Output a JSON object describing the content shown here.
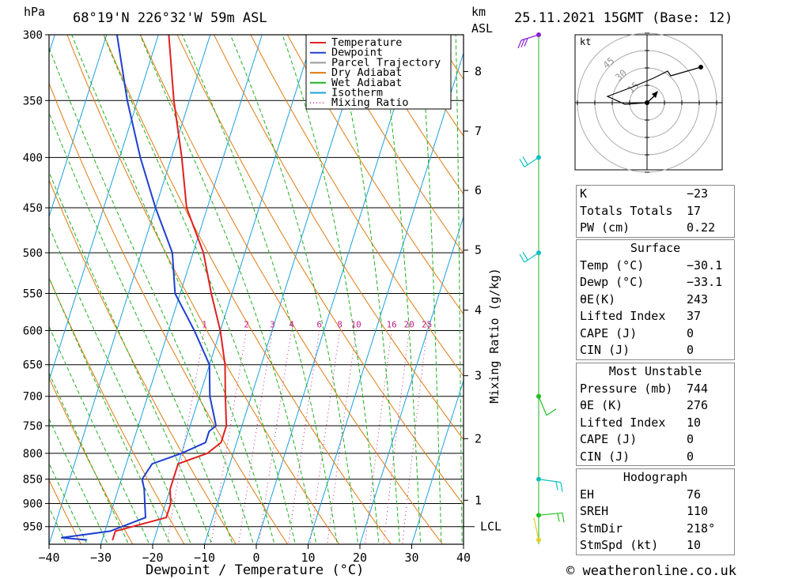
{
  "header": {
    "hpa_unit": "hPa",
    "location": "68°19'N  226°32'W  59m  ASL",
    "km_unit": "km",
    "asl_label": "ASL",
    "datetime": "25.11.2021  15GMT  (Base: 12)"
  },
  "footer": {
    "xlabel": "Dewpoint / Temperature (°C)",
    "credit": "© weatheronline.co.uk"
  },
  "chart_data": {
    "type": "line",
    "title": "68°19'N  226°32'W  59m  ASL",
    "xlabel": "Dewpoint / Temperature (°C)",
    "ylabel": "hPa",
    "y_scale": "log",
    "xlim": [
      -40,
      40
    ],
    "ylim": [
      990,
      300
    ],
    "skew_deg_per_decade_p": 60,
    "x_ticks": [
      -40,
      -30,
      -20,
      -10,
      0,
      10,
      20,
      30,
      40
    ],
    "pressure_levels": [
      300,
      350,
      400,
      450,
      500,
      550,
      600,
      650,
      700,
      750,
      800,
      850,
      900,
      950
    ],
    "km_ticks": [
      {
        "label": "8",
        "p": 327
      },
      {
        "label": "7",
        "p": 376
      },
      {
        "label": "6",
        "p": 432
      },
      {
        "label": "5",
        "p": 497
      },
      {
        "label": "4",
        "p": 572
      },
      {
        "label": "3",
        "p": 667
      },
      {
        "label": "2",
        "p": 773
      },
      {
        "label": "1",
        "p": 893
      }
    ],
    "lcl": {
      "label": "LCL",
      "p": 950
    },
    "mixing_ratio_label": "Mixing Ratio (g/kg)",
    "mixing_ratio_values": [
      "1",
      "2",
      "3",
      "4",
      "6",
      "8",
      "10",
      "16",
      "20",
      "25"
    ],
    "legend": {
      "position": "top-middle",
      "entries": [
        {
          "name": "Temperature",
          "color": "#e02020",
          "style": "solid"
        },
        {
          "name": "Dewpoint",
          "color": "#1f3fd0",
          "style": "solid"
        },
        {
          "name": "Parcel Trajectory",
          "color": "#9a9a9a",
          "style": "solid"
        },
        {
          "name": "Dry Adiabat",
          "color": "#e07a10",
          "style": "solid"
        },
        {
          "name": "Wet Adiabat",
          "color": "#20b020",
          "style": "solid"
        },
        {
          "name": "Isotherm",
          "color": "#1aa0e0",
          "style": "solid"
        },
        {
          "name": "Mixing Ratio",
          "color": "#c0208a",
          "style": "dotted"
        }
      ]
    },
    "series": [
      {
        "name": "Temperature",
        "color": "#e02020",
        "points": [
          [
            980,
            -28
          ],
          [
            960,
            -28
          ],
          [
            930,
            -19
          ],
          [
            900,
            -19
          ],
          [
            870,
            -20
          ],
          [
            850,
            -20
          ],
          [
            820,
            -20
          ],
          [
            800,
            -15
          ],
          [
            780,
            -13
          ],
          [
            750,
            -13
          ],
          [
            700,
            -15
          ],
          [
            650,
            -17
          ],
          [
            600,
            -20
          ],
          [
            550,
            -24
          ],
          [
            500,
            -28
          ],
          [
            450,
            -34
          ],
          [
            400,
            -38
          ],
          [
            350,
            -43
          ],
          [
            300,
            -48
          ]
        ]
      },
      {
        "name": "Dewpoint",
        "color": "#1f3fd0",
        "points": [
          [
            980,
            -33
          ],
          [
            975,
            -38
          ],
          [
            960,
            -29
          ],
          [
            930,
            -23
          ],
          [
            900,
            -24
          ],
          [
            870,
            -25
          ],
          [
            850,
            -26
          ],
          [
            820,
            -25
          ],
          [
            800,
            -20
          ],
          [
            780,
            -16
          ],
          [
            760,
            -16
          ],
          [
            750,
            -15
          ],
          [
            700,
            -18
          ],
          [
            650,
            -20
          ],
          [
            600,
            -25
          ],
          [
            550,
            -31
          ],
          [
            500,
            -34
          ],
          [
            450,
            -40
          ],
          [
            400,
            -46
          ],
          [
            350,
            -52
          ],
          [
            300,
            -58
          ]
        ]
      }
    ],
    "wind_profile": [
      {
        "p": 300,
        "color": "#8a20d0"
      },
      {
        "p": 400,
        "color": "#10c0c0"
      },
      {
        "p": 500,
        "color": "#10c0c0"
      },
      {
        "p": 700,
        "color": "#20c020"
      },
      {
        "p": 850,
        "color": "#10c0c0"
      },
      {
        "p": 925,
        "color": "#20c020"
      },
      {
        "p": 980,
        "color": "#e0d020"
      }
    ],
    "hodograph": {
      "unit_label": "kt",
      "ring_labels": [
        "15",
        "30",
        "45"
      ]
    }
  },
  "indices": {
    "general": [
      {
        "label": "K",
        "value": "-23"
      },
      {
        "label": "Totals Totals",
        "value": "17"
      },
      {
        "label": "PW (cm)",
        "value": "0.22"
      }
    ],
    "surface": {
      "title": "Surface",
      "rows": [
        {
          "label": "Temp (°C)",
          "value": "-30.1"
        },
        {
          "label": "Dewp (°C)",
          "value": "-33.1"
        },
        {
          "label": "θE(K)",
          "value": "243"
        },
        {
          "label": "Lifted Index",
          "value": "37"
        },
        {
          "label": "CAPE (J)",
          "value": "0"
        },
        {
          "label": "CIN (J)",
          "value": "0"
        }
      ]
    },
    "most_unstable": {
      "title": "Most Unstable",
      "rows": [
        {
          "label": "Pressure (mb)",
          "value": "744"
        },
        {
          "label": "θE (K)",
          "value": "276"
        },
        {
          "label": "Lifted Index",
          "value": "10"
        },
        {
          "label": "CAPE (J)",
          "value": "0"
        },
        {
          "label": "CIN (J)",
          "value": "0"
        }
      ]
    },
    "hodograph": {
      "title": "Hodograph",
      "rows": [
        {
          "label": "EH",
          "value": "76"
        },
        {
          "label": "SREH",
          "value": "110"
        },
        {
          "label": "StmDir",
          "value": "218°"
        },
        {
          "label": "StmSpd (kt)",
          "value": "10"
        }
      ]
    }
  }
}
